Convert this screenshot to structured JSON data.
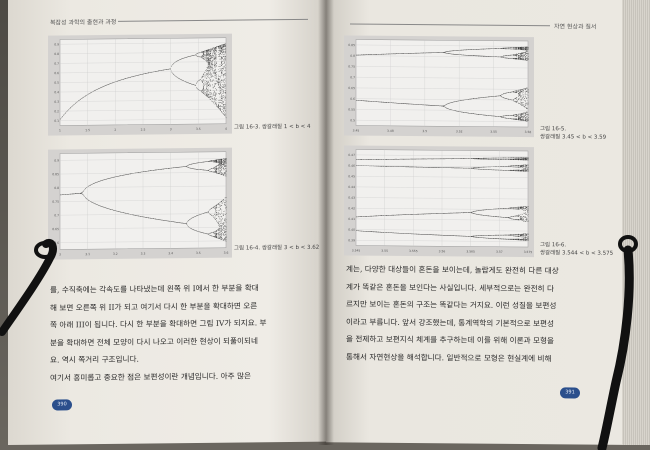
{
  "left_page": {
    "running_head": "복잡성 과학의 출현과 과정",
    "figure_top": {
      "caption": "그림 16-3. 쌍갈래질 1 < b < 4",
      "y_ticks": [
        "0.9",
        "0.8",
        "0.7",
        "0.6",
        "0.5",
        "0.4",
        "0.3",
        "0.2",
        "0.1"
      ],
      "x_ticks": [
        "1",
        "1.5",
        "2",
        "2.5",
        "3",
        "3.5",
        "4"
      ]
    },
    "figure_bottom": {
      "caption": "그림 16-4. 쌍갈래질 3 < b < 3.62",
      "y_ticks": [
        "0.9",
        "0.85",
        "0.8",
        "0.75",
        "0.7",
        "0.65",
        "0.6"
      ],
      "x_ticks": [
        "3",
        "3.1",
        "3.2",
        "3.3",
        "3.4",
        "3.5",
        "3.6"
      ]
    },
    "paragraph_lines": [
      "를, 수직축에는 각속도를 나타냈는데 왼쪽 위 I에서 한 부분을 확대",
      "해 보면 오른쪽 위 II가 되고 여기서 다시 한 부분을 확대하면 오른",
      "쪽 아래 III이 됩니다. 다시 한 부분을 확대하면 그림 IV가 되지요. 부",
      "분을 확대하면 전체 모양이 다시 나오고 이러한 현상이 되풀이되네",
      "요. 역시 쪽거리 구조입니다.",
      "여기서 흥미롭고 중요한 점은 보편성이란 개념입니다. 아주 많은"
    ],
    "page_number": "390"
  },
  "right_page": {
    "running_head": "자연 현상과 질서",
    "figure_top": {
      "caption_lines": [
        "그림 16-5.",
        "쌍갈래질 3.45 < b < 3.59"
      ],
      "y_ticks": [
        "0.85",
        "0.8",
        "0.75",
        "0.7",
        "0.65",
        "0.6",
        "0.55",
        "0.5"
      ],
      "x_ticks": [
        "3.45",
        "3.48",
        "3.5",
        "3.52",
        "3.55",
        "3.58"
      ]
    },
    "figure_bottom": {
      "caption_lines": [
        "그림 16-6.",
        "쌍갈래질 3.544 < b < 3.575"
      ],
      "y_ticks": [
        "0.47",
        "0.46",
        "0.45",
        "0.44",
        "0.43",
        "0.42",
        "0.41",
        "0.40",
        "0.39"
      ],
      "x_ticks": [
        "3.545",
        "3.55",
        "3.555",
        "3.56",
        "3.565",
        "3.57",
        "3.575"
      ]
    },
    "paragraph_lines": [
      "계는, 다양한 대상들이 혼돈을 보이는데, 놀랍게도 완전히 다른 대상",
      "계가 똑같은 혼돈을 보인다는 사실입니다. 세부적으로는 완전히 다",
      "르지만 보이는 혼돈의 구조는 똑같다는 거지요. 이런 성질을 보편성",
      "이라고 부릅니다. 앞서 강조했는데, 통계역학의 기본적으로 보편성",
      "을 전제하고 보편지식 체계를 추구하는데 이를 위해 이론과 모형을",
      "통해서 자연현상을 해석합니다. 일반적으로 모형은 현실계에 비해"
    ],
    "page_number": "391"
  },
  "colors": {
    "page": "#ece9e2",
    "figure_bg": "#d4d2d0",
    "ink": "#2a2a2a",
    "page_badge": "#2b4f8c",
    "ribbon": "#111111",
    "background": "#5a5750"
  }
}
